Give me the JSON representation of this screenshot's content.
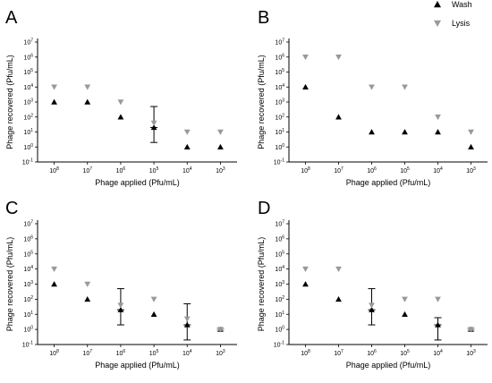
{
  "legend": [
    {
      "name": "Wash",
      "color": "#000000",
      "marker": "triangle-up"
    },
    {
      "name": "Lysis",
      "color": "#999999",
      "marker": "triangle-down"
    }
  ],
  "chart_data": [
    {
      "type": "scatter",
      "panel": "A",
      "xlabel": "Phage applied (Pfu/mL)",
      "ylabel": "Phage recovered (Pfu/mL)",
      "yscale": "log",
      "ylim": [
        0.1,
        10000000
      ],
      "categories": [
        "10^8",
        "10^7",
        "10^6",
        "10^5",
        "10^4",
        "10^3"
      ],
      "series": [
        {
          "name": "Wash",
          "values": [
            1000,
            1000,
            100,
            20,
            1,
            1
          ],
          "error_bars": [
            null,
            null,
            null,
            [
              2,
              500
            ],
            null,
            null
          ]
        },
        {
          "name": "Lysis",
          "values": [
            10000,
            10000,
            1000,
            40,
            10,
            10
          ],
          "error_bars": null
        }
      ]
    },
    {
      "type": "scatter",
      "panel": "B",
      "xlabel": "Phage applied (Pfu/mL)",
      "ylabel": "Phage recovered (Pfu/mL)",
      "yscale": "log",
      "ylim": [
        0.1,
        10000000
      ],
      "categories": [
        "10^8",
        "10^7",
        "10^6",
        "10^5",
        "10^4",
        "10^3"
      ],
      "series": [
        {
          "name": "Wash",
          "values": [
            10000,
            100,
            10,
            10,
            10,
            1
          ],
          "error_bars": null
        },
        {
          "name": "Lysis",
          "values": [
            1000000,
            1000000,
            10000,
            10000,
            100,
            10
          ],
          "error_bars": null
        }
      ]
    },
    {
      "type": "scatter",
      "panel": "C",
      "xlabel": "Phage applied (Pfu/mL)",
      "ylabel": "Phage recovered (Pfu/mL)",
      "yscale": "log",
      "ylim": [
        0.1,
        10000000
      ],
      "categories": [
        "10^8",
        "10^7",
        "10^6",
        "10^5",
        "10^4",
        "10^3"
      ],
      "series": [
        {
          "name": "Wash",
          "values": [
            1000,
            100,
            20,
            10,
            2,
            1
          ],
          "error_bars": [
            null,
            null,
            [
              2,
              500
            ],
            null,
            [
              0.2,
              50
            ],
            null
          ]
        },
        {
          "name": "Lysis",
          "values": [
            10000,
            1000,
            40,
            100,
            5,
            1
          ],
          "error_bars": [
            null,
            null,
            null,
            null,
            null,
            [
              0.8,
              1.2
            ]
          ]
        }
      ]
    },
    {
      "type": "scatter",
      "panel": "D",
      "xlabel": "Phage applied (Pfu/mL)",
      "ylabel": "Phage recovered (Pfu/mL)",
      "yscale": "log",
      "ylim": [
        0.1,
        10000000
      ],
      "categories": [
        "10^8",
        "10^7",
        "10^6",
        "10^5",
        "10^4",
        "10^3"
      ],
      "series": [
        {
          "name": "Wash",
          "values": [
            1000,
            100,
            20,
            10,
            2,
            1
          ],
          "error_bars": [
            null,
            null,
            [
              2,
              500
            ],
            null,
            [
              0.2,
              6
            ],
            null
          ]
        },
        {
          "name": "Lysis",
          "values": [
            10000,
            10000,
            40,
            100,
            100,
            1
          ],
          "error_bars": [
            null,
            null,
            null,
            null,
            null,
            [
              0.8,
              1.2
            ]
          ]
        }
      ]
    }
  ]
}
